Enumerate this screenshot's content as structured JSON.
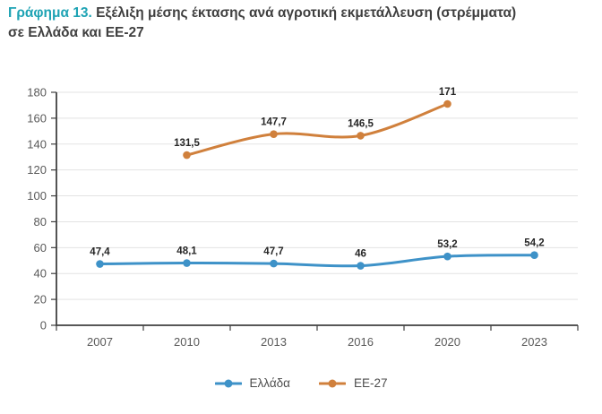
{
  "title": {
    "prefix": "Γράφημα 13.",
    "line1": "Εξέλιξη μέσης έκτασης ανά αγροτική εκμετάλλευση (στρέμματα)",
    "line2": "σε Ελλάδα και ΕΕ-27"
  },
  "chart_data": {
    "type": "line",
    "title": "Γράφημα 13. Εξέλιξη μέσης έκτασης ανά αγροτική εκμετάλλευση (στρέμματα) σε Ελλάδα και ΕΕ-27",
    "categories": [
      "2007",
      "2010",
      "2013",
      "2016",
      "2020",
      "2023"
    ],
    "series": [
      {
        "name": "Ελλάδα",
        "color": "#3e92c8",
        "values": [
          47.4,
          48.1,
          47.7,
          46,
          53.2,
          54.2
        ],
        "labels": [
          "47,4",
          "48,1",
          "47,7",
          "46",
          "53,2",
          "54,2"
        ]
      },
      {
        "name": "ΕΕ-27",
        "color": "#d0803c",
        "values": [
          null,
          131.5,
          147.7,
          146.5,
          171,
          null
        ],
        "labels": [
          "",
          "131,5",
          "147,7",
          "146,5",
          "171",
          ""
        ]
      }
    ],
    "xlabel": "",
    "ylabel": "",
    "ylim": [
      0,
      180
    ],
    "yticks": [
      0,
      20,
      40,
      60,
      80,
      100,
      120,
      140,
      160,
      180
    ],
    "grid": true,
    "legend_position": "bottom"
  },
  "colors": {
    "title_accent": "#1ea3b4",
    "title_text": "#3f3f3f",
    "axis": "#404040",
    "grid": "#e3e3e3",
    "tick_text": "#595959",
    "label_text": "#262626",
    "legend_text": "#4d4d4d",
    "background": "#ffffff"
  }
}
